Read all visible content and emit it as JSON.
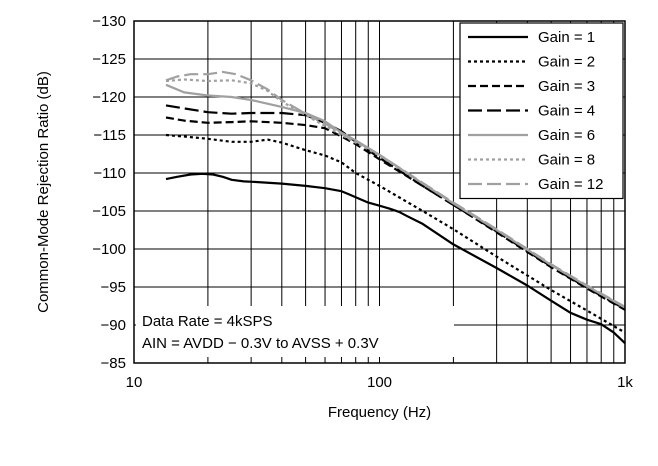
{
  "chart_data": {
    "type": "line",
    "title": "",
    "xlabel": "Frequency (Hz)",
    "ylabel": "Common-Mode Rejection Ratio (dB)",
    "x_scale": "log",
    "xlim": [
      10,
      1000
    ],
    "ylim": [
      -85,
      -130
    ],
    "x_ticks": [
      10,
      100,
      1000
    ],
    "x_tick_labels": [
      "10",
      "100",
      "1k"
    ],
    "y_ticks": [
      -130,
      -125,
      -120,
      -115,
      -110,
      -105,
      -100,
      -95,
      -90,
      -85
    ],
    "y_tick_labels": [
      "−130",
      "−125",
      "−120",
      "−115",
      "−110",
      "−105",
      "−100",
      "−95",
      "−90",
      "−85"
    ],
    "grid": true,
    "legend": "top-right",
    "annotations": [
      "Data Rate = 4kSPS",
      "AIN = AVDD − 0.3V to AVSS + 0.3V"
    ],
    "series": [
      {
        "name": "Gain = 1",
        "color": "#000000",
        "dash": "solid",
        "x": [
          13.5,
          15,
          17,
          19,
          21,
          23,
          25,
          28,
          32,
          40,
          50,
          60,
          70,
          75,
          80,
          90,
          100,
          110,
          120,
          130,
          150,
          200,
          300,
          400,
          500,
          600,
          700,
          800,
          900,
          1000
        ],
        "y": [
          -109.2,
          -109.5,
          -109.8,
          -109.9,
          -109.8,
          -109.5,
          -109.1,
          -108.9,
          -108.8,
          -108.6,
          -108.3,
          -108.0,
          -107.6,
          -107.2,
          -106.8,
          -106.1,
          -105.7,
          -105.3,
          -104.9,
          -104.3,
          -103.3,
          -100.6,
          -97.5,
          -95.2,
          -93.2,
          -91.6,
          -90.7,
          -90.1,
          -89.0,
          -87.6
        ]
      },
      {
        "name": "Gain = 2",
        "color": "#000000",
        "dash": "dot",
        "x": [
          13.5,
          16,
          20,
          25,
          30,
          35,
          40,
          50,
          60,
          70,
          80,
          100,
          150,
          200,
          300,
          500,
          700,
          1000
        ],
        "y": [
          -115.0,
          -114.8,
          -114.5,
          -114.1,
          -114.1,
          -114.4,
          -114.0,
          -113.0,
          -112.3,
          -111.4,
          -110.0,
          -108.3,
          -105.0,
          -102.6,
          -99.0,
          -94.6,
          -91.9,
          -89.0
        ]
      },
      {
        "name": "Gain = 3",
        "color": "#000000",
        "dash": "short-dash",
        "x": [
          13.5,
          16,
          20,
          25,
          30,
          40,
          50,
          60,
          70,
          80,
          100,
          150,
          200,
          300,
          500,
          700,
          1000
        ],
        "y": [
          -117.3,
          -116.9,
          -116.6,
          -116.7,
          -116.8,
          -116.6,
          -116.3,
          -115.9,
          -114.8,
          -113.8,
          -111.8,
          -108.3,
          -105.8,
          -102.2,
          -97.6,
          -94.8,
          -92.0
        ]
      },
      {
        "name": "Gain = 4",
        "color": "#000000",
        "dash": "long-dash",
        "x": [
          13.5,
          16,
          20,
          25,
          30,
          40,
          50,
          60,
          70,
          80,
          100,
          150,
          200,
          300,
          500,
          700,
          1000
        ],
        "y": [
          -118.9,
          -118.5,
          -118.0,
          -117.8,
          -117.9,
          -117.9,
          -117.6,
          -116.6,
          -115.5,
          -114.1,
          -112.0,
          -108.3,
          -105.8,
          -102.3,
          -97.7,
          -94.9,
          -92.1
        ]
      },
      {
        "name": "Gain = 6",
        "color": "#a0a0a0",
        "dash": "solid",
        "x": [
          13.5,
          16,
          20,
          25,
          30,
          40,
          50,
          60,
          70,
          80,
          100,
          150,
          200,
          300,
          500,
          700,
          1000
        ],
        "y": [
          -121.6,
          -120.6,
          -120.2,
          -120.0,
          -119.6,
          -118.7,
          -117.9,
          -116.8,
          -115.3,
          -114.3,
          -112.4,
          -108.6,
          -106.0,
          -102.5,
          -97.9,
          -95.1,
          -92.3
        ]
      },
      {
        "name": "Gain = 8",
        "color": "#a0a0a0",
        "dash": "dot",
        "x": [
          13.5,
          16,
          20,
          25,
          30,
          35,
          40,
          50,
          60,
          70,
          80,
          100,
          150,
          200,
          300,
          500,
          700,
          1000
        ],
        "y": [
          -122.1,
          -122.3,
          -122.1,
          -122.2,
          -121.8,
          -120.8,
          -119.4,
          -117.6,
          -116.2,
          -115.0,
          -114.0,
          -112.3,
          -108.6,
          -106.0,
          -102.5,
          -97.9,
          -95.1,
          -92.3
        ]
      },
      {
        "name": "Gain = 12",
        "color": "#a0a0a0",
        "dash": "long-dash",
        "x": [
          13.5,
          15,
          17,
          20,
          23,
          26,
          30,
          35,
          40,
          50,
          60,
          70,
          80,
          100,
          150,
          200,
          300,
          500,
          700,
          1000
        ],
        "y": [
          -122.2,
          -122.7,
          -123.0,
          -123.0,
          -123.3,
          -123.0,
          -122.2,
          -121.0,
          -119.6,
          -117.8,
          -116.5,
          -115.2,
          -114.2,
          -112.4,
          -108.7,
          -106.1,
          -102.6,
          -98.0,
          -95.2,
          -92.4
        ]
      }
    ]
  }
}
